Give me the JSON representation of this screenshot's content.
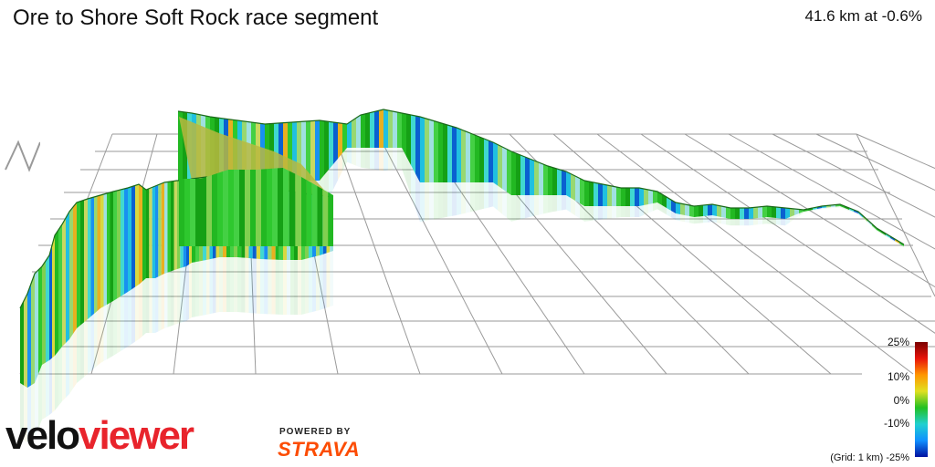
{
  "header": {
    "title": "Ore to Shore Soft Rock race segment",
    "stats": "41.6 km at -0.6%"
  },
  "legend": {
    "labels": [
      "25%",
      "10%",
      "0%",
      "-10%",
      "-25%"
    ],
    "grid_note": "(Grid: 1 km)",
    "colors": [
      "#7a0000",
      "#e8140a",
      "#ff9600",
      "#e0e020",
      "#22c022",
      "#20d0d0",
      "#1090ff",
      "#0010a0"
    ]
  },
  "branding": {
    "logo_part1": "velo",
    "logo_part2": "viewer",
    "powered_by": "POWERED BY",
    "partner": "STRAVA"
  },
  "toggle": {
    "icon": "profile-toggle-icon"
  },
  "chart_data": {
    "type": "3d-elevation-profile",
    "distance_km": 41.6,
    "avg_grade_pct": -0.6,
    "grade_scale_pct": [
      -25,
      25
    ],
    "grid_spacing_km": 1
  }
}
